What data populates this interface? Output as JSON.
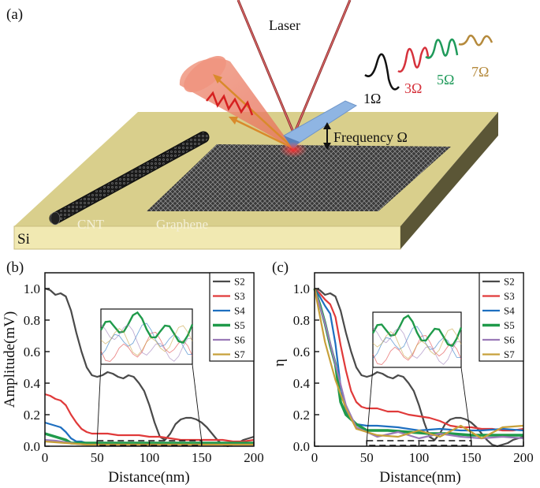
{
  "schematic": {
    "panel_label": "(a)",
    "laser_label": "Laser",
    "frequency_label": "Frequency Ω",
    "cnt_label": "CNT",
    "graphene_label": "Graphene",
    "substrate_label": "Si",
    "harmonics": [
      {
        "label": "1Ω",
        "color": "#111111"
      },
      {
        "label": "3Ω",
        "color": "#d6323c"
      },
      {
        "label": "5Ω",
        "color": "#1f9a5a"
      },
      {
        "label": "7Ω",
        "color": "#b58a3c"
      }
    ]
  },
  "chart_data": [
    {
      "type": "line",
      "panel_label": "(b)",
      "title": "",
      "xlabel": "Distance(nm)",
      "ylabel": "Amplitude(mV)",
      "xlim": [
        0,
        200
      ],
      "ylim": [
        0,
        1.1
      ],
      "xticks": [
        "0",
        "50",
        "100",
        "150",
        "200"
      ],
      "yticks": [
        "0.0",
        "0.2",
        "0.4",
        "0.6",
        "0.8",
        "1.0"
      ],
      "legend_position": "top-right",
      "inset_range": [
        50,
        150
      ],
      "series": [
        {
          "name": "S2",
          "color": "#4a4a4a",
          "x": [
            0,
            5,
            10,
            15,
            20,
            25,
            30,
            35,
            40,
            45,
            50,
            55,
            60,
            65,
            70,
            75,
            80,
            85,
            90,
            95,
            100,
            105,
            110,
            115,
            120,
            125,
            130,
            135,
            140,
            145,
            150,
            155,
            160,
            165,
            170,
            175,
            180,
            185,
            190,
            195,
            200
          ],
          "y": [
            1.0,
            0.99,
            0.96,
            0.97,
            0.95,
            0.86,
            0.72,
            0.6,
            0.5,
            0.45,
            0.44,
            0.45,
            0.47,
            0.46,
            0.44,
            0.43,
            0.45,
            0.44,
            0.4,
            0.35,
            0.26,
            0.15,
            0.06,
            0.04,
            0.08,
            0.14,
            0.17,
            0.18,
            0.18,
            0.17,
            0.15,
            0.12,
            0.08,
            0.04,
            0.01,
            0.0,
            0.01,
            0.02,
            0.04,
            0.05,
            0.06
          ]
        },
        {
          "name": "S3",
          "color": "#e03a3a",
          "x": [
            0,
            5,
            10,
            15,
            20,
            25,
            30,
            35,
            40,
            45,
            50,
            60,
            70,
            80,
            90,
            100,
            110,
            120,
            130,
            140,
            150,
            160,
            170,
            180,
            190,
            200
          ],
          "y": [
            0.33,
            0.32,
            0.3,
            0.29,
            0.26,
            0.2,
            0.15,
            0.11,
            0.09,
            0.08,
            0.08,
            0.08,
            0.07,
            0.07,
            0.07,
            0.06,
            0.06,
            0.05,
            0.04,
            0.04,
            0.04,
            0.04,
            0.04,
            0.03,
            0.03,
            0.04
          ]
        },
        {
          "name": "S4",
          "color": "#1e6fc0",
          "x": [
            0,
            5,
            10,
            15,
            20,
            25,
            30,
            35,
            40,
            50,
            60,
            80,
            100,
            120,
            140,
            160,
            180,
            200
          ],
          "y": [
            0.15,
            0.14,
            0.13,
            0.12,
            0.09,
            0.05,
            0.03,
            0.03,
            0.02,
            0.02,
            0.02,
            0.02,
            0.02,
            0.02,
            0.02,
            0.02,
            0.02,
            0.02
          ]
        },
        {
          "name": "S5",
          "color": "#1f9a4a",
          "x": [
            0,
            5,
            10,
            15,
            20,
            25,
            30,
            40,
            50,
            70,
            90,
            110,
            130,
            150,
            170,
            200
          ],
          "y": [
            0.08,
            0.07,
            0.06,
            0.05,
            0.04,
            0.02,
            0.02,
            0.02,
            0.02,
            0.02,
            0.02,
            0.02,
            0.02,
            0.02,
            0.02,
            0.02
          ]
        },
        {
          "name": "S6",
          "color": "#9a7ab8",
          "x": [
            0,
            10,
            20,
            30,
            40,
            60,
            80,
            100,
            120,
            140,
            160,
            180,
            200
          ],
          "y": [
            0.04,
            0.035,
            0.025,
            0.015,
            0.01,
            0.01,
            0.01,
            0.01,
            0.01,
            0.01,
            0.01,
            0.01,
            0.01
          ]
        },
        {
          "name": "S7",
          "color": "#c7a03a",
          "x": [
            0,
            10,
            20,
            30,
            40,
            60,
            80,
            100,
            120,
            140,
            160,
            180,
            200
          ],
          "y": [
            0.03,
            0.025,
            0.02,
            0.015,
            0.01,
            0.01,
            0.01,
            0.01,
            0.01,
            0.01,
            0.01,
            0.01,
            0.01
          ]
        }
      ]
    },
    {
      "type": "line",
      "panel_label": "(c)",
      "title": "",
      "xlabel": "Distance(nm)",
      "ylabel": "η",
      "xlim": [
        0,
        200
      ],
      "ylim": [
        0,
        1.1
      ],
      "xticks": [
        "0",
        "50",
        "100",
        "150",
        "200"
      ],
      "yticks": [
        "0.0",
        "0.2",
        "0.4",
        "0.6",
        "0.8",
        "1.0"
      ],
      "legend_position": "top-right",
      "inset_range": [
        50,
        150
      ],
      "series": [
        {
          "name": "S2",
          "color": "#4a4a4a",
          "x": [
            0,
            5,
            10,
            15,
            20,
            25,
            30,
            35,
            40,
            45,
            50,
            55,
            60,
            65,
            70,
            75,
            80,
            85,
            90,
            95,
            100,
            105,
            110,
            115,
            120,
            125,
            130,
            135,
            140,
            145,
            150,
            155,
            160,
            165,
            170,
            175,
            180,
            185,
            190,
            195,
            200
          ],
          "y": [
            1.0,
            0.99,
            0.96,
            0.97,
            0.95,
            0.86,
            0.72,
            0.6,
            0.5,
            0.45,
            0.44,
            0.45,
            0.47,
            0.46,
            0.44,
            0.43,
            0.45,
            0.44,
            0.4,
            0.35,
            0.26,
            0.15,
            0.06,
            0.04,
            0.08,
            0.14,
            0.17,
            0.18,
            0.18,
            0.17,
            0.15,
            0.12,
            0.08,
            0.04,
            0.01,
            0.0,
            0.01,
            0.02,
            0.04,
            0.05,
            0.06
          ]
        },
        {
          "name": "S3",
          "color": "#e03a3a",
          "x": [
            0,
            5,
            10,
            15,
            20,
            25,
            30,
            35,
            40,
            45,
            50,
            60,
            70,
            80,
            90,
            100,
            110,
            120,
            130,
            140,
            150,
            160,
            170,
            180,
            190,
            200
          ],
          "y": [
            1.0,
            0.97,
            0.93,
            0.9,
            0.82,
            0.64,
            0.48,
            0.35,
            0.28,
            0.25,
            0.24,
            0.24,
            0.22,
            0.22,
            0.2,
            0.19,
            0.18,
            0.16,
            0.13,
            0.12,
            0.12,
            0.11,
            0.11,
            0.1,
            0.1,
            0.11
          ]
        },
        {
          "name": "S4",
          "color": "#1e6fc0",
          "x": [
            0,
            5,
            10,
            15,
            20,
            25,
            30,
            35,
            40,
            50,
            60,
            80,
            100,
            120,
            140,
            160,
            180,
            200
          ],
          "y": [
            1.0,
            0.95,
            0.89,
            0.84,
            0.65,
            0.38,
            0.22,
            0.18,
            0.14,
            0.13,
            0.13,
            0.12,
            0.1,
            0.11,
            0.1,
            0.1,
            0.11,
            0.1
          ]
        },
        {
          "name": "S5",
          "color": "#1f9a4a",
          "x": [
            0,
            5,
            10,
            15,
            20,
            25,
            30,
            40,
            50,
            70,
            90,
            110,
            130,
            150,
            170,
            200
          ],
          "y": [
            1.0,
            0.9,
            0.78,
            0.64,
            0.52,
            0.28,
            0.2,
            0.14,
            0.1,
            0.1,
            0.09,
            0.08,
            0.08,
            0.07,
            0.07,
            0.07
          ]
        },
        {
          "name": "S6",
          "color": "#9a7ab8",
          "x": [
            0,
            10,
            20,
            30,
            40,
            60,
            80,
            100,
            120,
            140,
            160,
            180,
            200
          ],
          "y": [
            1.0,
            0.78,
            0.52,
            0.26,
            0.12,
            0.06,
            0.09,
            0.05,
            0.08,
            0.06,
            0.05,
            0.06,
            0.05
          ]
        },
        {
          "name": "S7",
          "color": "#c7a03a",
          "x": [
            0,
            10,
            20,
            30,
            40,
            60,
            80,
            100,
            120,
            140,
            160,
            180,
            200
          ],
          "y": [
            1.0,
            0.66,
            0.42,
            0.24,
            0.11,
            0.07,
            0.06,
            0.1,
            0.06,
            0.13,
            0.05,
            0.12,
            0.13
          ]
        }
      ]
    }
  ]
}
